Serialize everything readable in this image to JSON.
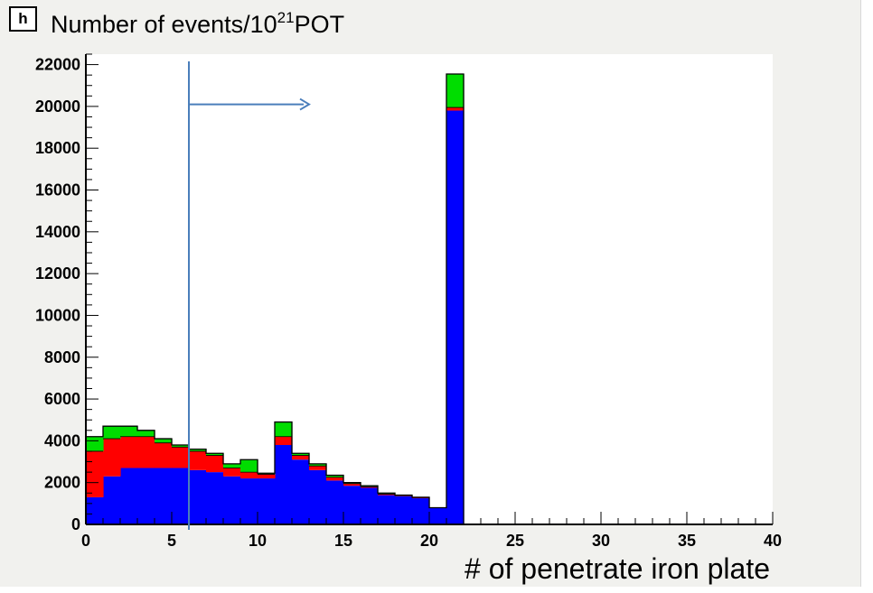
{
  "badge": "h",
  "chart_data": {
    "type": "bar",
    "title": "",
    "ylabel_parts": [
      "Number of events/10",
      "21",
      "POT"
    ],
    "ylabel": "Number of events/10^21POT",
    "xlabel": "# of penetrate iron plate",
    "xlim": [
      0,
      40
    ],
    "ylim": [
      0,
      22500
    ],
    "x_ticks": [
      0,
      5,
      10,
      15,
      20,
      25,
      30,
      35,
      40
    ],
    "y_ticks": [
      0,
      2000,
      4000,
      6000,
      8000,
      10000,
      12000,
      14000,
      16000,
      18000,
      20000,
      22000
    ],
    "stacked": true,
    "bin_edges": [
      0,
      1,
      2,
      3,
      4,
      5,
      6,
      7,
      8,
      9,
      10,
      11,
      12,
      13,
      14,
      15,
      16,
      17,
      18,
      19,
      20,
      21,
      22
    ],
    "series": [
      {
        "color": "#0000ff",
        "values": [
          1300,
          2300,
          2700,
          2700,
          2700,
          2700,
          2600,
          2500,
          2300,
          2200,
          2200,
          3800,
          3100,
          2600,
          2100,
          1850,
          1750,
          1400,
          1350,
          1250,
          800,
          19800
        ]
      },
      {
        "color": "#ff0000",
        "values": [
          2200,
          1800,
          1500,
          1500,
          1200,
          1000,
          900,
          800,
          400,
          300,
          200,
          400,
          200,
          200,
          150,
          100,
          50,
          50,
          30,
          30,
          0,
          150
        ]
      },
      {
        "color": "#00dd00",
        "values": [
          700,
          600,
          500,
          300,
          200,
          100,
          100,
          100,
          200,
          600,
          50,
          700,
          100,
          100,
          100,
          50,
          50,
          50,
          20,
          20,
          0,
          1600
        ]
      }
    ],
    "annotation": {
      "cut_x": 6,
      "arrow_from_x": 6,
      "arrow_to_x": 13,
      "arrow_y": 20100,
      "color": "#4a7ebb"
    }
  }
}
